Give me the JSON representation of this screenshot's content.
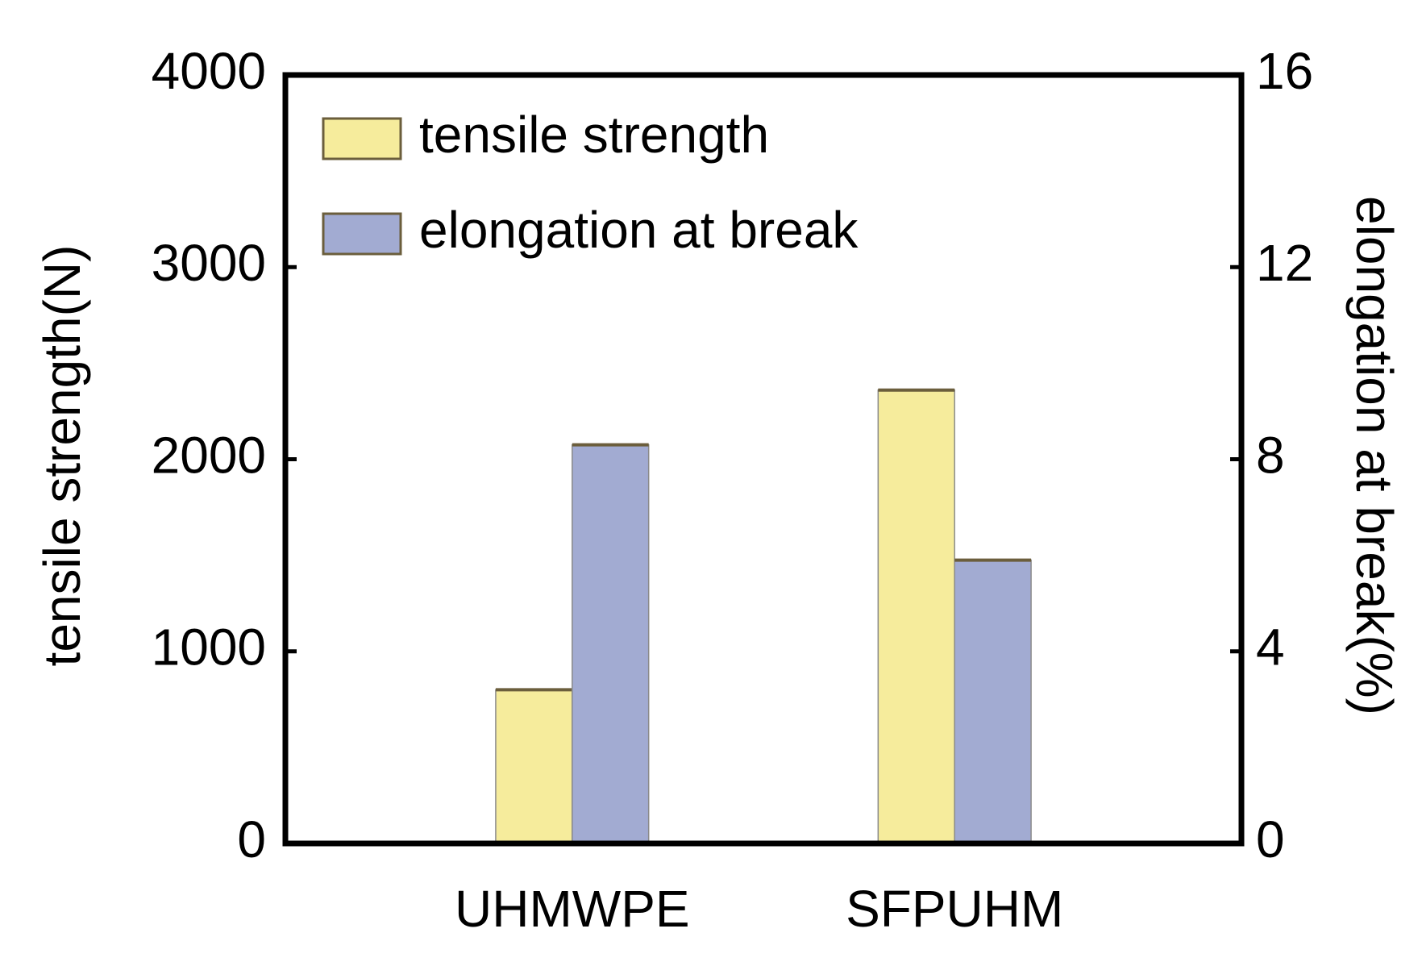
{
  "chart_data": {
    "type": "bar",
    "categories": [
      "UHMWPE",
      "SFPUHM"
    ],
    "series": [
      {
        "name": "tensile strength",
        "color": "#f6ec9c",
        "values": [
          800,
          2360
        ]
      },
      {
        "name": "elongation at break",
        "color": "#a2abd2",
        "values": [
          8.3,
          5.9
        ],
        "axis": "y2"
      }
    ],
    "ylabel": "tensile strength(N)",
    "y2label": "elongation at break(%)",
    "ylim": [
      0,
      4000
    ],
    "yticks": [
      0,
      1000,
      2000,
      3000,
      4000
    ],
    "y2lim": [
      0,
      16
    ],
    "y2ticks": [
      0,
      4,
      8,
      12,
      16
    ],
    "legend": "upper-left"
  }
}
